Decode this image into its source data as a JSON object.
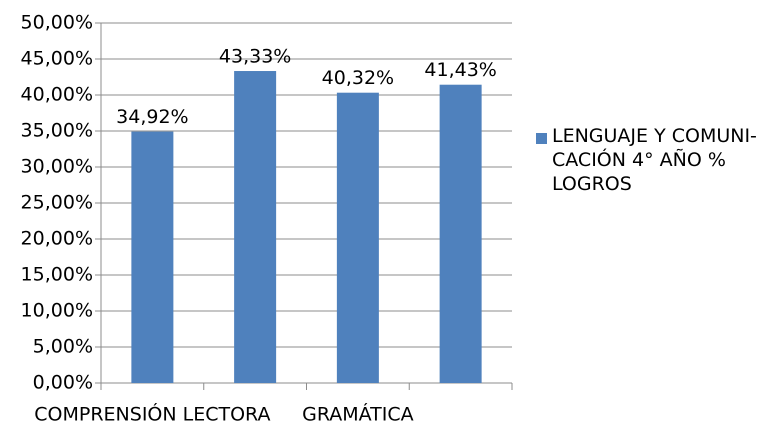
{
  "chart_data": {
    "type": "bar",
    "categories": [
      "COMPRENSIÓN LECTORA",
      null,
      "GRAMÁTICA",
      null
    ],
    "series": [
      {
        "name": "LENGUAJE Y COMUNI-CACIÓN  4° AÑO % LOGROS",
        "color": "#4f81bd",
        "values": [
          34.92,
          43.33,
          40.32,
          41.43
        ],
        "value_labels": [
          "34,92%",
          "43,33%",
          "40,32%",
          "41,43%"
        ]
      }
    ],
    "ylim": [
      0,
      50
    ],
    "yticks": [
      {
        "value": 0,
        "label": "0,00%"
      },
      {
        "value": 5,
        "label": "5,00%"
      },
      {
        "value": 10,
        "label": "10,00%"
      },
      {
        "value": 15,
        "label": "15,00%"
      },
      {
        "value": 20,
        "label": "20,00%"
      },
      {
        "value": 25,
        "label": "25,00%"
      },
      {
        "value": 30,
        "label": "30,00%"
      },
      {
        "value": 35,
        "label": "35,00%"
      },
      {
        "value": 40,
        "label": "40,00%"
      },
      {
        "value": 45,
        "label": "45,00%"
      },
      {
        "value": 50,
        "label": "50,00%"
      }
    ],
    "grid": true,
    "legend": "right"
  }
}
